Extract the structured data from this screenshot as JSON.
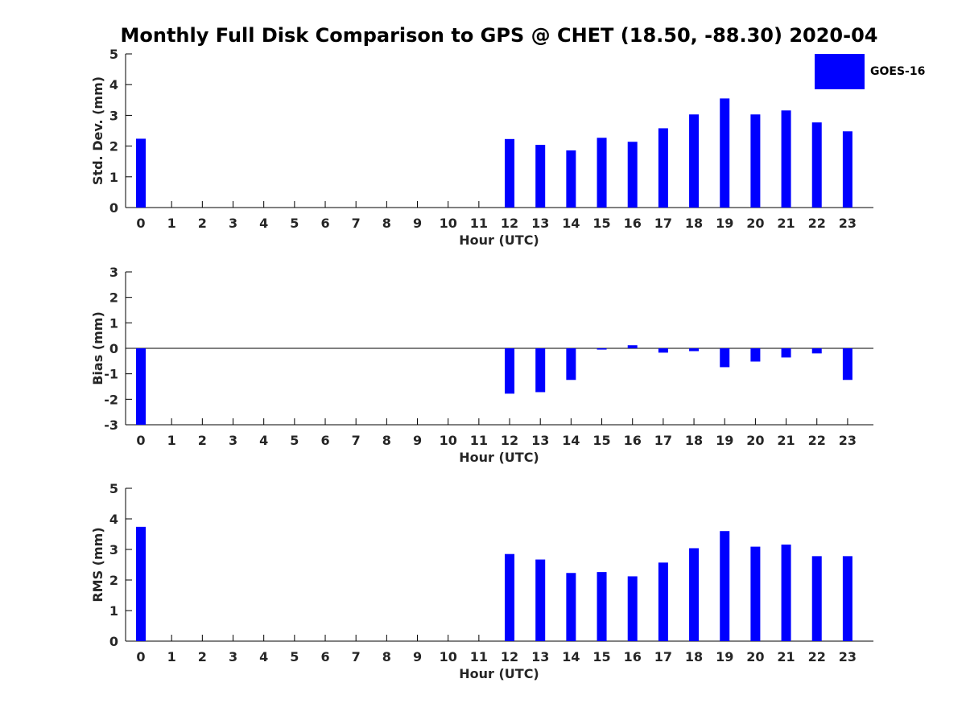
{
  "title": "Monthly Full Disk Comparison to GPS @ CHET (18.50, -88.30) 2020-04",
  "legend": {
    "label": "GOES-16",
    "color": "#0000ff"
  },
  "chart_data": [
    {
      "type": "bar",
      "xlabel": "Hour (UTC)",
      "ylabel": "Std. Dev. (mm)",
      "ylim": [
        0,
        5
      ],
      "yticks": [
        0,
        1,
        2,
        3,
        4,
        5
      ],
      "categories": [
        "0",
        "1",
        "2",
        "3",
        "4",
        "5",
        "6",
        "7",
        "8",
        "9",
        "10",
        "11",
        "12",
        "13",
        "14",
        "15",
        "16",
        "17",
        "18",
        "19",
        "20",
        "21",
        "22",
        "23"
      ],
      "series": [
        {
          "name": "GOES-16",
          "values": [
            2.24,
            null,
            null,
            null,
            null,
            null,
            null,
            null,
            null,
            null,
            null,
            null,
            2.23,
            2.04,
            1.86,
            2.27,
            2.14,
            2.58,
            3.03,
            3.55,
            3.03,
            3.16,
            2.77,
            2.48
          ]
        }
      ]
    },
    {
      "type": "bar",
      "xlabel": "Hour (UTC)",
      "ylabel": "Bias (mm)",
      "ylim": [
        -3,
        3
      ],
      "yticks": [
        -3,
        -2,
        -1,
        0,
        1,
        2,
        3
      ],
      "categories": [
        "0",
        "1",
        "2",
        "3",
        "4",
        "5",
        "6",
        "7",
        "8",
        "9",
        "10",
        "11",
        "12",
        "13",
        "14",
        "15",
        "16",
        "17",
        "18",
        "19",
        "20",
        "21",
        "22",
        "23"
      ],
      "series": [
        {
          "name": "GOES-16",
          "values": [
            -3.0,
            null,
            null,
            null,
            null,
            null,
            null,
            null,
            null,
            null,
            null,
            null,
            -1.78,
            -1.72,
            -1.24,
            -0.05,
            0.12,
            -0.17,
            -0.11,
            -0.74,
            -0.52,
            -0.36,
            -0.2,
            -1.24
          ]
        }
      ]
    },
    {
      "type": "bar",
      "xlabel": "Hour (UTC)",
      "ylabel": "RMS (mm)",
      "ylim": [
        0,
        5
      ],
      "yticks": [
        0,
        1,
        2,
        3,
        4,
        5
      ],
      "categories": [
        "0",
        "1",
        "2",
        "3",
        "4",
        "5",
        "6",
        "7",
        "8",
        "9",
        "10",
        "11",
        "12",
        "13",
        "14",
        "15",
        "16",
        "17",
        "18",
        "19",
        "20",
        "21",
        "22",
        "23"
      ],
      "series": [
        {
          "name": "GOES-16",
          "values": [
            3.74,
            null,
            null,
            null,
            null,
            null,
            null,
            null,
            null,
            null,
            null,
            null,
            2.85,
            2.67,
            2.23,
            2.26,
            2.12,
            2.57,
            3.04,
            3.6,
            3.09,
            3.16,
            2.78,
            2.78
          ]
        }
      ]
    }
  ]
}
